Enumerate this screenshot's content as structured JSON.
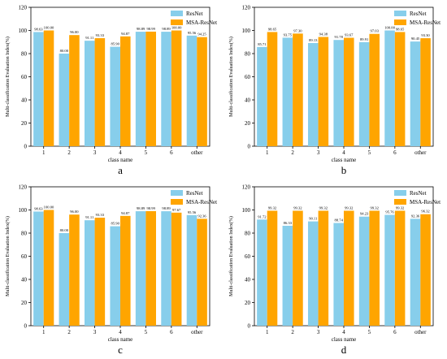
{
  "chart_data": [
    {
      "type": "bar",
      "panel_label": "a",
      "categories": [
        "1",
        "2",
        "3",
        "4",
        "5",
        "6",
        "other"
      ],
      "series": [
        {
          "name": "ResNet",
          "values": [
            98.63,
            80.0,
            91.11,
            85.9,
            98.89,
            98.89,
            95.56
          ]
        },
        {
          "name": "MSA-ResNet",
          "values": [
            100.0,
            96.0,
            93.33,
            94.87,
            98.99,
            100.0,
            94.25
          ]
        }
      ],
      "value_labels": [
        [
          "98.63",
          "80.00",
          "91.11",
          "85.90",
          "98.89",
          "98.89",
          "95.56"
        ],
        [
          "100.00",
          "96.00",
          "93.33",
          "94.87",
          "98.99",
          "100.00",
          "94.25"
        ]
      ],
      "xlabel": "class name",
      "ylabel": "Multi-classification Evaluation Index(%)",
      "ylim": [
        0,
        120
      ],
      "yticks": [
        "0",
        "20",
        "40",
        "60",
        "80",
        "100",
        "120"
      ],
      "legend_position": "top-right",
      "grid": false
    },
    {
      "type": "bar",
      "panel_label": "b",
      "categories": [
        "1",
        "2",
        "3",
        "4",
        "5",
        "6",
        "other"
      ],
      "series": [
        {
          "name": "ResNet",
          "values": [
            85.71,
            93.75,
            89.13,
            91.78,
            89.91,
            100.0,
            90.45
          ]
        },
        {
          "name": "MSA-ResNet",
          "values": [
            98.65,
            97.3,
            94.38,
            93.67,
            97.03,
            98.65,
            93.3
          ]
        }
      ],
      "value_labels": [
        [
          "85.71",
          "93.75",
          "89.13",
          "91.78",
          "89.91",
          "100.00",
          "90.45"
        ],
        [
          "98.65",
          "97.30",
          "94.38",
          "93.67",
          "97.03",
          "98.65",
          "93.30"
        ]
      ],
      "xlabel": "class name",
      "ylabel": "Multi-classification Evaluation Index(%)",
      "ylim": [
        0,
        120
      ],
      "yticks": [
        "0",
        "20",
        "40",
        "60",
        "80",
        "100",
        "120"
      ],
      "legend_position": "top-right",
      "grid": false
    },
    {
      "type": "bar",
      "panel_label": "c",
      "categories": [
        "1",
        "2",
        "3",
        "4",
        "5",
        "6",
        "other"
      ],
      "series": [
        {
          "name": "ResNet",
          "values": [
            98.63,
            80.0,
            91.11,
            85.9,
            98.89,
            98.89,
            95.56
          ]
        },
        {
          "name": "MSA-ResNet",
          "values": [
            100.0,
            96.0,
            93.33,
            94.87,
            98.99,
            97.67,
            92.36
          ]
        }
      ],
      "value_labels": [
        [
          "98.63",
          "80.00",
          "91.11",
          "85.90",
          "98.89",
          "98.89",
          "95.56"
        ],
        [
          "100.00",
          "96.00",
          "93.33",
          "94.87",
          "98.99",
          "97.67",
          "92.36"
        ]
      ],
      "xlabel": "class name",
      "ylabel": "Multi-classification Evaluation Index(%)",
      "ylim": [
        0,
        120
      ],
      "yticks": [
        "0",
        "20",
        "40",
        "60",
        "80",
        "100",
        "120"
      ],
      "legend_position": "top-right",
      "grid": false
    },
    {
      "type": "bar",
      "panel_label": "d",
      "categories": [
        "1",
        "2",
        "3",
        "4",
        "5",
        "6",
        "other"
      ],
      "series": [
        {
          "name": "ResNet",
          "values": [
            91.72,
            86.33,
            90.11,
            88.74,
            94.23,
            95.76,
            92.36
          ]
        },
        {
          "name": "MSA-ResNet",
          "values": [
            99.32,
            99.32,
            99.32,
            99.32,
            99.32,
            99.32,
            96.32
          ]
        }
      ],
      "value_labels": [
        [
          "91.72",
          "86.33",
          "90.11",
          "88.74",
          "94.23",
          "95.76",
          "92.36"
        ],
        [
          "99.32",
          "99.32",
          "99.32",
          "99.32",
          "99.32",
          "99.32",
          "96.32"
        ]
      ],
      "xlabel": "class name",
      "ylabel": "Multi-classification Evaluation Index(%)",
      "ylim": [
        0,
        120
      ],
      "yticks": [
        "0",
        "20",
        "40",
        "60",
        "80",
        "100",
        "120"
      ],
      "legend_position": "top-right",
      "grid": false
    }
  ],
  "colors": {
    "ResNet": "#87ceeb",
    "MSA-ResNet": "#ffa500",
    "axis": "#000000",
    "text": "#000000"
  }
}
